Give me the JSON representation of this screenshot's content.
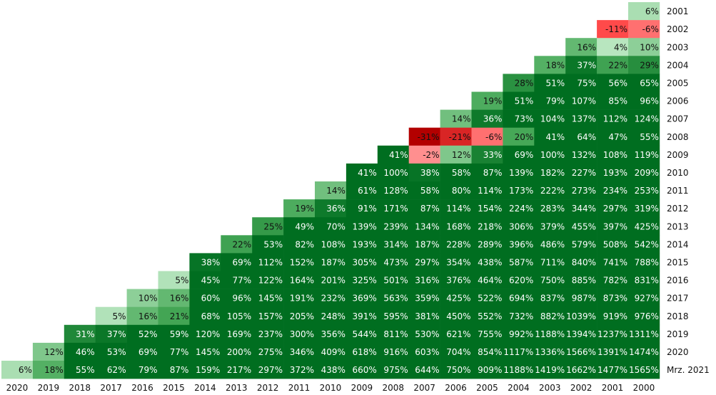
{
  "chart_data": {
    "type": "heatmap",
    "title": "",
    "columns": [
      "2020",
      "2019",
      "2018",
      "2017",
      "2016",
      "2015",
      "2014",
      "2013",
      "2012",
      "2011",
      "2010",
      "2009",
      "2008",
      "2007",
      "2006",
      "2005",
      "2004",
      "2003",
      "2002",
      "2001",
      "2000"
    ],
    "rows": [
      {
        "label": "2001",
        "values": [
          6
        ]
      },
      {
        "label": "2002",
        "values": [
          -11,
          -6
        ]
      },
      {
        "label": "2003",
        "values": [
          16,
          4,
          10
        ]
      },
      {
        "label": "2004",
        "values": [
          18,
          37,
          22,
          29
        ]
      },
      {
        "label": "2005",
        "values": [
          28,
          51,
          75,
          56,
          65
        ]
      },
      {
        "label": "2006",
        "values": [
          19,
          51,
          79,
          107,
          85,
          96
        ]
      },
      {
        "label": "2007",
        "values": [
          14,
          36,
          73,
          104,
          137,
          112,
          124
        ]
      },
      {
        "label": "2008",
        "values": [
          -31,
          -21,
          -6,
          20,
          41,
          64,
          47,
          55
        ]
      },
      {
        "label": "2009",
        "values": [
          41,
          -2,
          12,
          33,
          69,
          100,
          132,
          108,
          119
        ]
      },
      {
        "label": "2010",
        "values": [
          41,
          100,
          38,
          58,
          87,
          139,
          182,
          227,
          193,
          209
        ]
      },
      {
        "label": "2011",
        "values": [
          14,
          61,
          128,
          58,
          80,
          114,
          173,
          222,
          273,
          234,
          253
        ]
      },
      {
        "label": "2012",
        "values": [
          19,
          36,
          91,
          171,
          87,
          114,
          154,
          224,
          283,
          344,
          297,
          319
        ]
      },
      {
        "label": "2013",
        "values": [
          25,
          49,
          70,
          139,
          239,
          134,
          168,
          218,
          306,
          379,
          455,
          397,
          425
        ]
      },
      {
        "label": "2014",
        "values": [
          22,
          53,
          82,
          108,
          193,
          314,
          187,
          228,
          289,
          396,
          486,
          579,
          508,
          542
        ]
      },
      {
        "label": "2015",
        "values": [
          38,
          69,
          112,
          152,
          187,
          305,
          473,
          297,
          354,
          438,
          587,
          711,
          840,
          741,
          788
        ]
      },
      {
        "label": "2016",
        "values": [
          5,
          45,
          77,
          122,
          164,
          201,
          325,
          501,
          316,
          376,
          464,
          620,
          750,
          885,
          782,
          831
        ]
      },
      {
        "label": "2017",
        "values": [
          10,
          16,
          60,
          96,
          145,
          191,
          232,
          369,
          563,
          359,
          425,
          522,
          694,
          837,
          987,
          873,
          927
        ]
      },
      {
        "label": "2018",
        "values": [
          5,
          16,
          21,
          68,
          105,
          157,
          205,
          248,
          391,
          595,
          381,
          450,
          552,
          732,
          882,
          1039,
          919,
          976
        ]
      },
      {
        "label": "2019",
        "values": [
          31,
          37,
          52,
          59,
          120,
          169,
          237,
          300,
          356,
          544,
          811,
          530,
          621,
          755,
          992,
          1188,
          1394,
          1237,
          1311
        ]
      },
      {
        "label": "2020",
        "values": [
          12,
          46,
          53,
          69,
          77,
          145,
          200,
          275,
          346,
          409,
          618,
          916,
          603,
          704,
          854,
          1117,
          1336,
          1566,
          1391,
          1474
        ]
      },
      {
        "label": "Mrz. 2021",
        "values": [
          6,
          18,
          55,
          62,
          79,
          87,
          159,
          217,
          297,
          372,
          438,
          660,
          975,
          644,
          750,
          909,
          1188,
          1419,
          1662,
          1477,
          1565
        ]
      }
    ],
    "value_suffix": "%",
    "colors": {
      "positive_light": "#b8e6bf",
      "positive_mid": "#46a857",
      "positive_dark": "#006e20",
      "negative_light": "#ff8f8f",
      "negative_mid": "#ff4a4a",
      "negative_dark": "#b30000"
    }
  }
}
